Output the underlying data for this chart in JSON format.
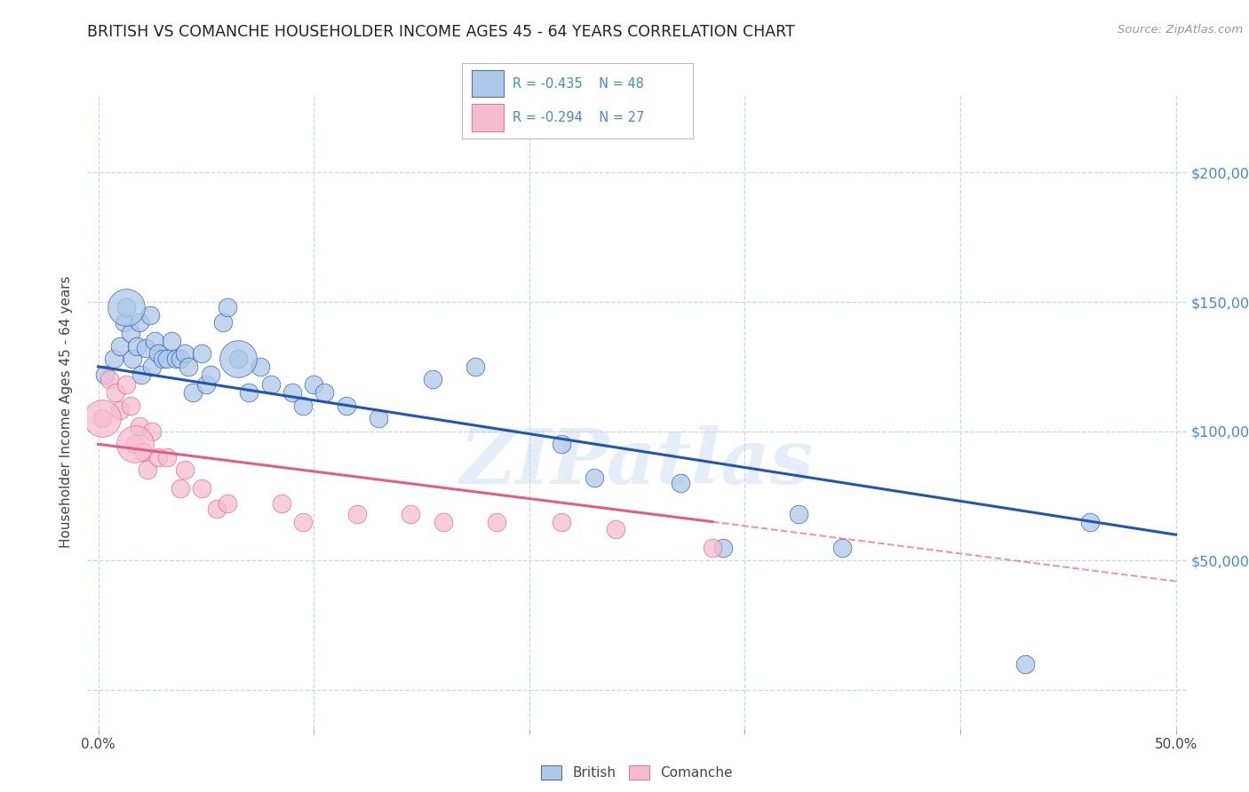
{
  "title": "BRITISH VS COMANCHE HOUSEHOLDER INCOME AGES 45 - 64 YEARS CORRELATION CHART",
  "source": "Source: ZipAtlas.com",
  "ylabel": "Householder Income Ages 45 - 64 years",
  "xlim": [
    -0.005,
    0.505
  ],
  "ylim": [
    -15000,
    230000
  ],
  "yticks": [
    0,
    50000,
    100000,
    150000,
    200000
  ],
  "ytick_labels_right": [
    "",
    "$50,000",
    "$100,000",
    "$150,000",
    "$200,000"
  ],
  "xticks": [
    0.0,
    0.1,
    0.2,
    0.3,
    0.4,
    0.5
  ],
  "xtick_labels": [
    "0.0%",
    "",
    "",
    "",
    "",
    "50.0%"
  ],
  "legend_r_british": "R = -0.435",
  "legend_n_british": "N = 48",
  "legend_r_comanche": "R = -0.294",
  "legend_n_comanche": "N = 27",
  "british_color": "#adc8e8",
  "comanche_color": "#f5bcd0",
  "trend_british_color": "#2255b0",
  "trend_comanche_color": "#e06080",
  "bg_color": "#ffffff",
  "grid_color": "#c8d4e8",
  "title_color": "#222222",
  "right_axis_color": "#4488cc",
  "watermark": "ZIPatlas",
  "british_x": [
    0.003,
    0.007,
    0.01,
    0.012,
    0.013,
    0.015,
    0.016,
    0.018,
    0.019,
    0.02,
    0.022,
    0.024,
    0.025,
    0.026,
    0.028,
    0.03,
    0.032,
    0.034,
    0.036,
    0.038,
    0.04,
    0.042,
    0.044,
    0.048,
    0.05,
    0.052,
    0.058,
    0.06,
    0.065,
    0.07,
    0.075,
    0.08,
    0.09,
    0.095,
    0.1,
    0.105,
    0.115,
    0.13,
    0.155,
    0.175,
    0.215,
    0.23,
    0.27,
    0.29,
    0.325,
    0.345,
    0.43,
    0.46
  ],
  "british_y": [
    122000,
    128000,
    133000,
    142000,
    148000,
    138000,
    128000,
    133000,
    142000,
    122000,
    132000,
    145000,
    125000,
    135000,
    130000,
    128000,
    128000,
    135000,
    128000,
    128000,
    130000,
    125000,
    115000,
    130000,
    118000,
    122000,
    142000,
    148000,
    128000,
    115000,
    125000,
    118000,
    115000,
    110000,
    118000,
    115000,
    110000,
    105000,
    120000,
    125000,
    95000,
    82000,
    80000,
    55000,
    68000,
    55000,
    10000,
    65000
  ],
  "british_sizes": [
    1,
    1,
    1,
    1,
    1,
    1,
    1,
    1,
    1,
    1,
    1,
    1,
    1,
    1,
    1,
    1,
    1,
    1,
    1,
    1,
    1,
    1,
    1,
    1,
    1,
    1,
    1,
    1,
    1,
    1,
    1,
    1,
    1,
    1,
    1,
    1,
    1,
    1,
    1,
    1,
    1,
    1,
    1,
    1,
    1,
    1,
    1,
    1
  ],
  "british_large": [
    4,
    28
  ],
  "comanche_x": [
    0.002,
    0.005,
    0.008,
    0.01,
    0.013,
    0.015,
    0.017,
    0.019,
    0.021,
    0.023,
    0.025,
    0.028,
    0.032,
    0.038,
    0.04,
    0.048,
    0.055,
    0.06,
    0.085,
    0.095,
    0.12,
    0.145,
    0.16,
    0.185,
    0.215,
    0.24,
    0.285
  ],
  "comanche_y": [
    105000,
    120000,
    115000,
    108000,
    118000,
    110000,
    95000,
    102000,
    92000,
    85000,
    100000,
    90000,
    90000,
    78000,
    85000,
    78000,
    70000,
    72000,
    72000,
    65000,
    68000,
    68000,
    65000,
    65000,
    65000,
    62000,
    55000
  ],
  "comanche_large": [
    0,
    6
  ],
  "trend_b_x0": 0.0,
  "trend_b_y0": 125000,
  "trend_b_x1": 0.5,
  "trend_b_y1": 60000,
  "trend_c_solid_x0": 0.0,
  "trend_c_solid_y0": 95000,
  "trend_c_solid_x1": 0.285,
  "trend_c_solid_y1": 65000,
  "trend_c_dash_x0": 0.285,
  "trend_c_dash_y0": 65000,
  "trend_c_dash_x1": 0.5,
  "trend_c_dash_y1": 42000,
  "figsize": [
    14.06,
    8.92
  ],
  "dpi": 100
}
